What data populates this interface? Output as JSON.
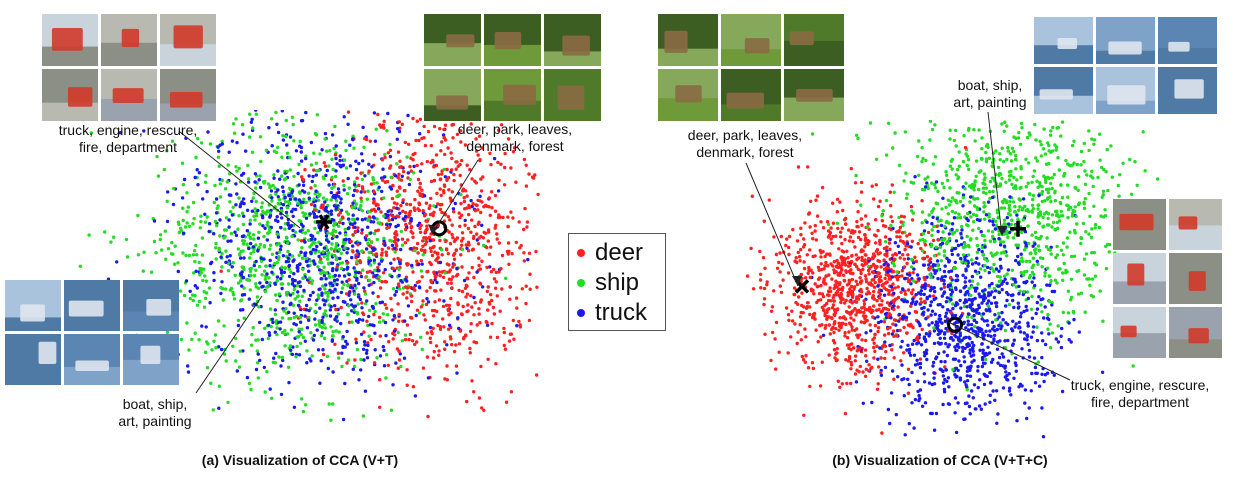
{
  "chart_data": [
    {
      "type": "scatter",
      "caption": "(a) Visualization of CCA (V+T)",
      "title": "",
      "xlabel": "",
      "ylabel": "",
      "axes": "hidden",
      "grid": false,
      "series": [
        {
          "name": "deer",
          "color": "#ff2020",
          "n_points": 900,
          "center": [
            0.78,
            0.4
          ],
          "spread": [
            0.11,
            0.22
          ]
        },
        {
          "name": "ship",
          "color": "#22dd22",
          "n_points": 900,
          "center": [
            0.48,
            0.44
          ],
          "spread": [
            0.14,
            0.2
          ]
        },
        {
          "name": "truck",
          "color": "#1a1aee",
          "n_points": 900,
          "center": [
            0.55,
            0.43
          ],
          "spread": [
            0.14,
            0.21
          ]
        }
      ],
      "markers": [
        {
          "shape": "star",
          "class": "truck",
          "x": 0.55,
          "y": 0.35
        },
        {
          "shape": "circle",
          "class": "deer",
          "x": 0.79,
          "y": 0.37
        }
      ],
      "annotations": [
        {
          "lines": [
            "truck, engine, rescure,",
            "fire, department"
          ],
          "class": "truck"
        },
        {
          "lines": [
            "deer, park, leaves,",
            "denmark, forest"
          ],
          "class": "deer"
        },
        {
          "lines": [
            "boat, ship,",
            "art, painting"
          ],
          "class": "ship"
        }
      ]
    },
    {
      "type": "scatter",
      "caption": "(b) Visualization of CCA (V+T+C)",
      "title": "",
      "xlabel": "",
      "ylabel": "",
      "axes": "hidden",
      "grid": false,
      "series": [
        {
          "name": "deer",
          "color": "#ff2020",
          "n_points": 900,
          "center": [
            0.28,
            0.52
          ],
          "spread": [
            0.09,
            0.13
          ]
        },
        {
          "name": "ship",
          "color": "#22dd22",
          "n_points": 900,
          "center": [
            0.62,
            0.3
          ],
          "spread": [
            0.13,
            0.18
          ]
        },
        {
          "name": "truck",
          "color": "#1a1aee",
          "n_points": 900,
          "center": [
            0.52,
            0.62
          ],
          "spread": [
            0.1,
            0.16
          ]
        }
      ],
      "markers": [
        {
          "shape": "cross",
          "class": "deer",
          "x": 0.16,
          "y": 0.52
        },
        {
          "shape": "plus",
          "class": "ship",
          "x": 0.64,
          "y": 0.34
        },
        {
          "shape": "circle",
          "class": "truck",
          "x": 0.5,
          "y": 0.64
        }
      ],
      "annotations": [
        {
          "lines": [
            "deer, park, leaves,",
            "denmark, forest"
          ],
          "class": "deer"
        },
        {
          "lines": [
            "boat, ship,",
            "art, painting"
          ],
          "class": "ship"
        },
        {
          "lines": [
            "truck, engine, rescure,",
            "fire, department"
          ],
          "class": "truck"
        }
      ]
    }
  ],
  "legend": {
    "placement": "center",
    "entries": [
      {
        "label": "deer",
        "color": "#ff2020"
      },
      {
        "label": "ship",
        "color": "#22dd22"
      },
      {
        "label": "truck",
        "color": "#1a1aee"
      }
    ]
  },
  "image_groups": [
    {
      "panel": "a",
      "depicts": "trucks",
      "count": 6
    },
    {
      "panel": "a",
      "depicts": "deer",
      "count": 6
    },
    {
      "panel": "a",
      "depicts": "ships",
      "count": 6
    },
    {
      "panel": "b",
      "depicts": "deer",
      "count": 6
    },
    {
      "panel": "b",
      "depicts": "ships",
      "count": 6
    },
    {
      "panel": "b",
      "depicts": "trucks",
      "count": 6
    }
  ]
}
